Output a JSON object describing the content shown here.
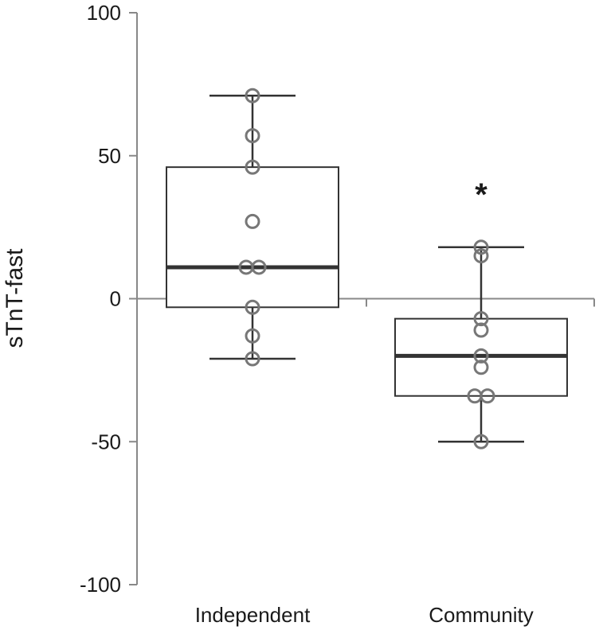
{
  "chart_data": {
    "type": "box",
    "ylabel": "sTnT-fast",
    "xlabel": "",
    "ylim": [
      -100,
      100
    ],
    "yticks": [
      100,
      50,
      0,
      -50,
      -100
    ],
    "categories": [
      "Independent",
      "Community"
    ],
    "grid": false,
    "boxes": [
      {
        "category": "Independent",
        "q1": -3,
        "median": 11,
        "q3": 46,
        "whisker_low": -21,
        "whisker_high": 71,
        "points": [
          71,
          57,
          46,
          27,
          11,
          11,
          -3,
          -13,
          -21
        ]
      },
      {
        "category": "Community",
        "q1": -34,
        "median": -20,
        "q3": -7,
        "whisker_low": -50,
        "whisker_high": 18,
        "points": [
          18,
          15,
          -7,
          -11,
          -20,
          -24,
          -34,
          -34,
          -50
        ]
      }
    ],
    "annotations": [
      {
        "text": "*",
        "category": "Community"
      }
    ],
    "colors": {
      "axis": "#888888",
      "box_edge": "#333333",
      "median": "#333333",
      "points": "#777777"
    }
  }
}
